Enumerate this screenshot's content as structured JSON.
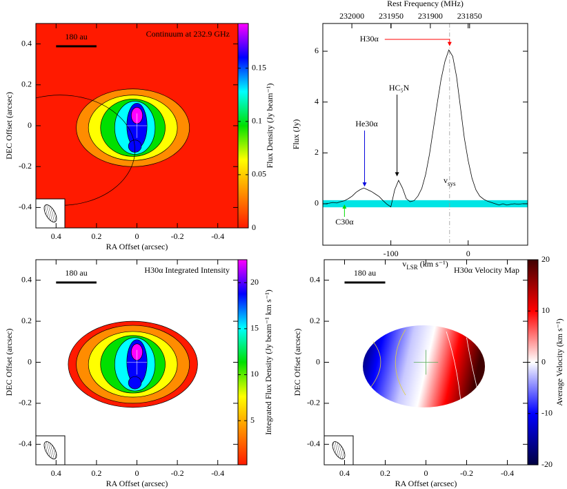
{
  "chart_data": [
    {
      "type": "heatmap",
      "title": "Continuum at 232.9 GHz",
      "scale_label": "180 au",
      "xlabel": "RA Offset (arcsec)",
      "ylabel": "DEC Offset (arcsec)",
      "xlim": [
        0.5,
        -0.5
      ],
      "xticks": [
        0.4,
        0.2,
        0,
        -0.2,
        -0.4
      ],
      "ylim": [
        -0.5,
        0.5
      ],
      "yticks": [
        -0.4,
        -0.2,
        0,
        0.2,
        0.4
      ],
      "colorbar": {
        "label": "Flux Density (Jy beam⁻¹)",
        "lim": [
          0,
          0.192
        ],
        "ticks": [
          0,
          0.05,
          0.1,
          0.15
        ],
        "colors": [
          "#ff1a00",
          "#ff8c00",
          "#ffff00",
          "#00e000",
          "#00ffff",
          "#0000ff",
          "#ff00ff"
        ]
      }
    },
    {
      "type": "line",
      "x2label": "Rest Frequency (MHz)",
      "x2lim": [
        232037,
        231776
      ],
      "x2ticks": [
        232000,
        231950,
        231900,
        231850
      ],
      "xlabel": [
        "v",
        "LSR",
        " (km s⁻¹)"
      ],
      "ylabel": "Flux (Jy)",
      "xlim": [
        -188,
        77
      ],
      "xticks": [
        -100,
        0
      ],
      "ylim": [
        -1.63,
        7.09
      ],
      "yticks": [
        0,
        2,
        4,
        6
      ],
      "x": [
        -185,
        -180,
        -175,
        -170,
        -165,
        -160,
        -155,
        -150,
        -145,
        -140,
        -135,
        -130,
        -125,
        -120,
        -115,
        -110,
        -105,
        -100,
        -95,
        -90,
        -85,
        -80,
        -75,
        -70,
        -65,
        -60,
        -55,
        -50,
        -45,
        -40,
        -35,
        -30,
        -25,
        -20,
        -15,
        -10,
        -5,
        0,
        5,
        10,
        15,
        20,
        25,
        30,
        35,
        40,
        45,
        50,
        55,
        60,
        65,
        70,
        75
      ],
      "series": [
        {
          "color": "#000000",
          "values": [
            0.0,
            0.02,
            0.05,
            0.03,
            0.08,
            0.12,
            0.2,
            0.3,
            0.45,
            0.55,
            0.62,
            0.55,
            0.48,
            0.38,
            0.28,
            0.12,
            -0.02,
            -0.12,
            0.55,
            0.92,
            0.62,
            0.2,
            0.08,
            0.12,
            0.3,
            0.6,
            1.15,
            1.95,
            2.95,
            3.95,
            4.9,
            5.6,
            6.05,
            5.8,
            5.0,
            3.8,
            2.6,
            1.7,
            1.0,
            0.55,
            0.3,
            0.18,
            0.1,
            0.05,
            0,
            -0.05,
            0,
            -0.05,
            -0.02,
            0,
            -0.02,
            0,
            0
          ]
        }
      ],
      "band": {
        "range": [
          -0.14,
          0.14
        ],
        "color": "#00e5e5"
      },
      "vsys": {
        "x": -24,
        "label": [
          "v",
          "sys"
        ],
        "color": "#999999"
      },
      "annotations": [
        {
          "text": "H30α",
          "color": "#ff0000",
          "x": -24,
          "y": 6.2
        },
        {
          "text": "He30α",
          "color": "#0000dd",
          "x": -134,
          "y": 0.65
        },
        {
          "text": "HC₅N",
          "color": "#000000",
          "x": -92,
          "y": 1.05
        },
        {
          "text": "C30α",
          "color": "#00dd00",
          "x": -160,
          "y": 0.0
        }
      ]
    },
    {
      "type": "heatmap",
      "title": "H30α Integrated Intensity",
      "scale_label": "180 au",
      "xlabel": "RA Offset (arcsec)",
      "ylabel": "DEC Offset (arcsec)",
      "xlim": [
        0.5,
        -0.5
      ],
      "xticks": [
        0.4,
        0.2,
        0,
        -0.2,
        -0.4
      ],
      "ylim": [
        -0.5,
        0.5
      ],
      "yticks": [
        -0.4,
        -0.2,
        0,
        0.2,
        0.4
      ],
      "colorbar": {
        "label": "Integrated Flux Density (Jy beam⁻¹ km s⁻¹)",
        "lim": [
          0.2,
          22.5
        ],
        "ticks": [
          5,
          10,
          15,
          20
        ],
        "colors": [
          "#ff1a00",
          "#ff8c00",
          "#ffff00",
          "#00e000",
          "#00ffff",
          "#0000ff",
          "#ff00ff"
        ]
      }
    },
    {
      "type": "velocity",
      "title": "H30α Velocity Map",
      "scale_label": "180 au",
      "xlabel": "RA Offset (arcsec)",
      "ylabel": "DEC Offset (arcsec)",
      "xlim": [
        0.5,
        -0.5
      ],
      "xticks": [
        0.4,
        0.2,
        0,
        -0.2,
        -0.4
      ],
      "ylim": [
        -0.5,
        0.5
      ],
      "yticks": [
        -0.4,
        -0.2,
        0,
        0.2,
        0.4
      ],
      "colorbar": {
        "label": "Average Velocity (km s⁻¹)",
        "lim": [
          -20,
          20
        ],
        "ticks": [
          -20,
          -10,
          0,
          10,
          20
        ],
        "colors": [
          "#000040",
          "#0000ff",
          "#ffffff",
          "#ff0000",
          "#400000"
        ]
      }
    }
  ]
}
